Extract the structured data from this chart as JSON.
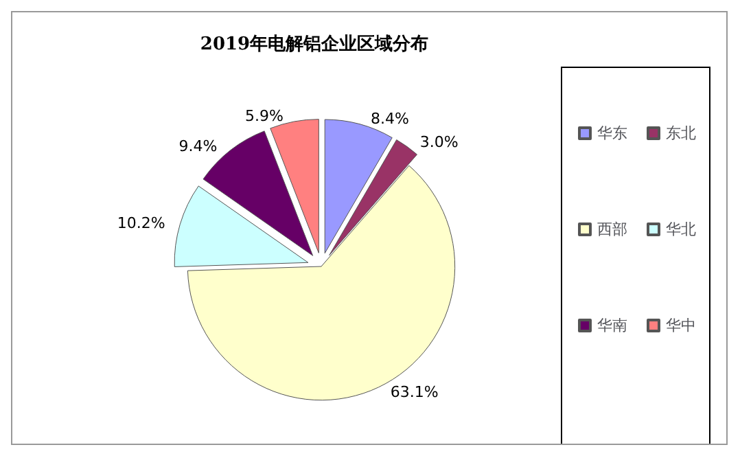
{
  "chart_data": {
    "type": "pie",
    "title": "2019年电解铝企业区域分布",
    "categories": [
      "华东",
      "东北",
      "西部",
      "华北",
      "华南",
      "华中"
    ],
    "values": [
      8.4,
      3.0,
      63.1,
      10.2,
      9.4,
      5.9
    ],
    "value_labels": [
      "8.4%",
      "3.0%",
      "63.1%",
      "10.2%",
      "9.4%",
      "5.9%"
    ],
    "colors": [
      "#9999ff",
      "#993366",
      "#ffffcc",
      "#ccffff",
      "#660066",
      "#ff8080"
    ],
    "legend": "right"
  }
}
